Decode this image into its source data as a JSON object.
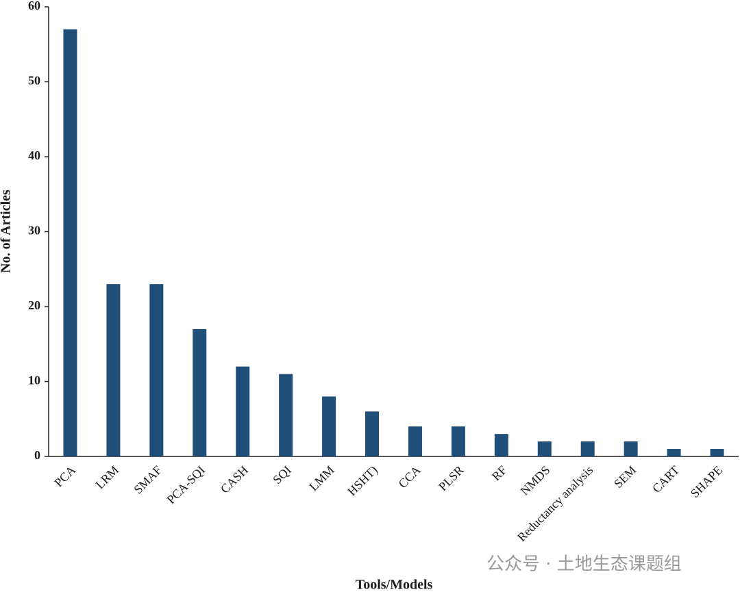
{
  "chart_data": {
    "type": "bar",
    "x_label": "Tools/Models",
    "y_label": "No. of Articles",
    "categories": [
      "PCA",
      "LRM",
      "SMAF",
      "PCA-SQI",
      "CASH",
      "SQI",
      "LMM",
      "HSHT)",
      "CCA",
      "PLSR",
      "RF",
      "NMDS",
      "Reductancy analysis",
      "SEM",
      "CART",
      "SHAPE"
    ],
    "values": [
      57,
      23,
      23,
      17,
      12,
      11,
      8,
      6,
      4,
      4,
      3,
      2,
      2,
      2,
      1,
      1
    ],
    "color": "#1f4e79",
    "ylim": [
      0,
      60
    ],
    "yticks": [
      0,
      10,
      20,
      30,
      40,
      50,
      60
    ],
    "grid": false
  },
  "watermark": "公众号 · 土地生态课题组"
}
